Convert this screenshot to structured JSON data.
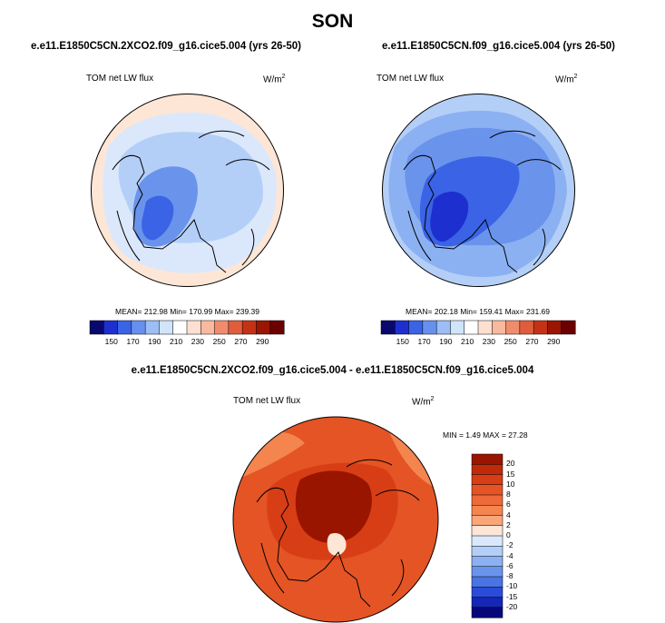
{
  "season": "SON",
  "units_base": "W/m",
  "units_exp": "2",
  "panels": [
    {
      "title": "e.e11.E1850C5CN.2XCO2.f09_g16.cice5.004 (yrs 26-50)",
      "variable": "TOM net LW flux",
      "stats_text": "MEAN= 212.98  Min= 170.99  Max= 239.39",
      "mean": 212.98,
      "min": 170.99,
      "max": 239.39
    },
    {
      "title": "e.e11.E1850C5CN.f09_g16.cice5.004 (yrs 26-50)",
      "variable": "TOM net LW flux",
      "stats_text": "MEAN= 202.18  Min= 159.41  Max= 231.69",
      "mean": 202.18,
      "min": 159.41,
      "max": 231.69
    },
    {
      "title": "e.e11.E1850C5CN.2XCO2.f09_g16.cice5.004 - e.e11.E1850C5CN.f09_g16.cice5.004",
      "variable": "TOM net LW flux",
      "stats_text": "MIN =   1.49 MAX =  27.28",
      "min": 1.49,
      "max": 27.28
    }
  ],
  "colorbar_abs": {
    "labels": [
      "150",
      "170",
      "190",
      "210",
      "230",
      "250",
      "270",
      "290"
    ],
    "colors": [
      "#08086e",
      "#1e2fd0",
      "#3a63e6",
      "#6690f0",
      "#9cbdf5",
      "#d0e4fb",
      "#ffffff",
      "#fde0d2",
      "#f9b99e",
      "#f08c6c",
      "#e05c3c",
      "#c43216",
      "#9a1502",
      "#6a0000"
    ]
  },
  "colorbar_diff": {
    "labels": [
      "20",
      "15",
      "10",
      "8",
      "6",
      "4",
      "2",
      "0",
      "-2",
      "-4",
      "-6",
      "-8",
      "-10",
      "-15",
      "-20"
    ],
    "colors": [
      "#9a1500",
      "#c02a0a",
      "#d83e16",
      "#e45424",
      "#ee6a38",
      "#f4854f",
      "#f9a67a",
      "#fde6d6",
      "#dbe8fb",
      "#b4cff7",
      "#8cb1f2",
      "#6a93ec",
      "#4a74e4",
      "#2a4cd8",
      "#1626b6",
      "#06087a"
    ]
  }
}
